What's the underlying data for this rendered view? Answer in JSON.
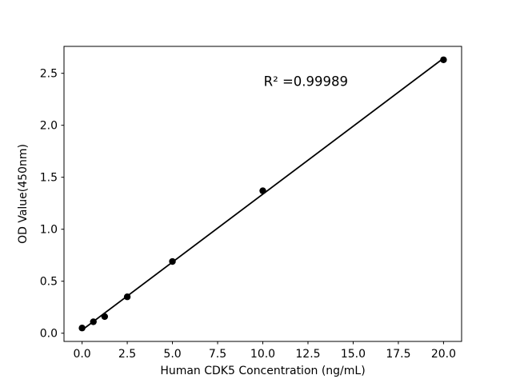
{
  "chart_data": {
    "type": "scatter",
    "title": "",
    "xlabel": "Human CDK5 Concentration (ng/mL)",
    "ylabel": "OD Value(450nm)",
    "x": [
      0,
      0.625,
      1.25,
      2.5,
      5,
      10,
      20
    ],
    "y": [
      0.05,
      0.11,
      0.16,
      0.35,
      0.69,
      1.37,
      2.63
    ],
    "fit": {
      "slope": 0.1307,
      "intercept": 0.0305,
      "x_start": 0,
      "x_end": 20
    },
    "annotation": {
      "text": "R² =0.99989",
      "x": 10.05,
      "y": 2.38
    },
    "xticks": {
      "values": [
        0,
        2.5,
        5,
        7.5,
        10,
        12.5,
        15,
        17.5,
        20
      ],
      "labels": [
        "0.0",
        "2.5",
        "5.0",
        "7.5",
        "10.0",
        "12.5",
        "15.0",
        "17.5",
        "20.0"
      ]
    },
    "yticks": {
      "values": [
        0,
        0.5,
        1,
        1.5,
        2,
        2.5
      ],
      "labels": [
        "0.0",
        "0.5",
        "1.0",
        "1.5",
        "2.0",
        "2.5"
      ]
    },
    "xlim": [
      -1.0,
      21.0
    ],
    "ylim": [
      -0.079,
      2.759
    ],
    "grid": false,
    "legend": null,
    "colors": {
      "marker": "#000000",
      "line": "#000000",
      "axis": "#000000",
      "background": "#ffffff"
    }
  }
}
